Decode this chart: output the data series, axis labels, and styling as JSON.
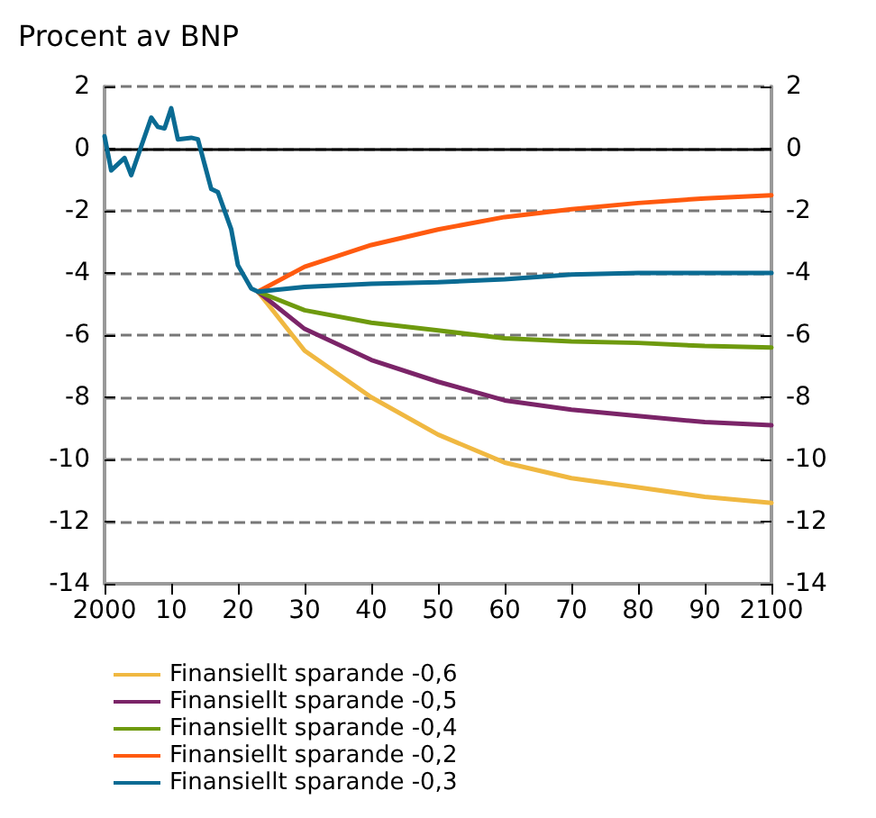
{
  "chart_data": {
    "type": "line",
    "ylabel": "Procent av BNP",
    "xlim": [
      2000,
      2100
    ],
    "xticks": [
      2000,
      {
        "value": 2010,
        "label": "10"
      },
      {
        "value": 2020,
        "label": "20"
      },
      {
        "value": 2030,
        "label": "30"
      },
      {
        "value": 2040,
        "label": "40"
      },
      {
        "value": 2050,
        "label": "50"
      },
      {
        "value": 2060,
        "label": "60"
      },
      {
        "value": 2070,
        "label": "70"
      },
      {
        "value": 2080,
        "label": "80"
      },
      {
        "value": 2090,
        "label": "90"
      },
      2100
    ],
    "ylim": [
      -14,
      2
    ],
    "yticks": [
      -14,
      -12,
      -10,
      -8,
      -6,
      -4,
      -2,
      0,
      2
    ],
    "y2lim": [
      -14,
      2
    ],
    "y2ticks": [
      -14,
      -12,
      -10,
      -8,
      -6,
      -4,
      -2,
      0,
      2
    ],
    "grid": "y",
    "legend": "bottom",
    "marker": "none",
    "line_style": "solid",
    "ref_lines": [
      {
        "axis": "y",
        "value": 0,
        "color": "#000000",
        "line_style": "solid"
      }
    ],
    "series": [
      {
        "name": "Finansiellt sparande -0,6",
        "color": "#f0b841",
        "x": [
          2023,
          2030,
          2040,
          2050,
          2060,
          2070,
          2080,
          2090,
          2100
        ],
        "values": [
          -4.6,
          -6.5,
          -8.0,
          -9.2,
          -10.1,
          -10.6,
          -10.9,
          -11.2,
          -11.4
        ]
      },
      {
        "name": "Finansiellt sparande -0,5",
        "color": "#7b2468",
        "x": [
          2023,
          2030,
          2040,
          2050,
          2060,
          2070,
          2080,
          2090,
          2100
        ],
        "values": [
          -4.6,
          -5.8,
          -6.8,
          -7.5,
          -8.1,
          -8.4,
          -8.6,
          -8.8,
          -8.9
        ]
      },
      {
        "name": "Finansiellt sparande -0,4",
        "color": "#6e9a0e",
        "x": [
          2023,
          2030,
          2040,
          2050,
          2060,
          2070,
          2080,
          2090,
          2100
        ],
        "values": [
          -4.6,
          -5.2,
          -5.6,
          -5.85,
          -6.1,
          -6.2,
          -6.25,
          -6.35,
          -6.4
        ]
      },
      {
        "name": "Finansiellt sparande -0,2",
        "color": "#ff5a0f",
        "x": [
          2023,
          2030,
          2040,
          2050,
          2060,
          2070,
          2080,
          2090,
          2100
        ],
        "values": [
          -4.6,
          -3.8,
          -3.1,
          -2.6,
          -2.2,
          -1.95,
          -1.75,
          -1.6,
          -1.5
        ]
      },
      {
        "name": "Finansiellt sparande -0,3",
        "color": "#0a6b93",
        "x": [
          2000,
          2001,
          2003,
          2004,
          2007,
          2008,
          2009,
          2010,
          2011,
          2013,
          2014,
          2015,
          2016,
          2017,
          2019,
          2020,
          2022,
          2023,
          2030,
          2040,
          2050,
          2060,
          2070,
          2080,
          2090,
          2100
        ],
        "values": [
          0.4,
          -0.7,
          -0.3,
          -0.85,
          1.0,
          0.7,
          0.65,
          1.3,
          0.3,
          0.35,
          0.3,
          -0.5,
          -1.3,
          -1.4,
          -2.6,
          -3.75,
          -4.5,
          -4.6,
          -4.45,
          -4.35,
          -4.3,
          -4.2,
          -4.05,
          -4.0,
          -4.0,
          -4.0
        ]
      }
    ]
  }
}
